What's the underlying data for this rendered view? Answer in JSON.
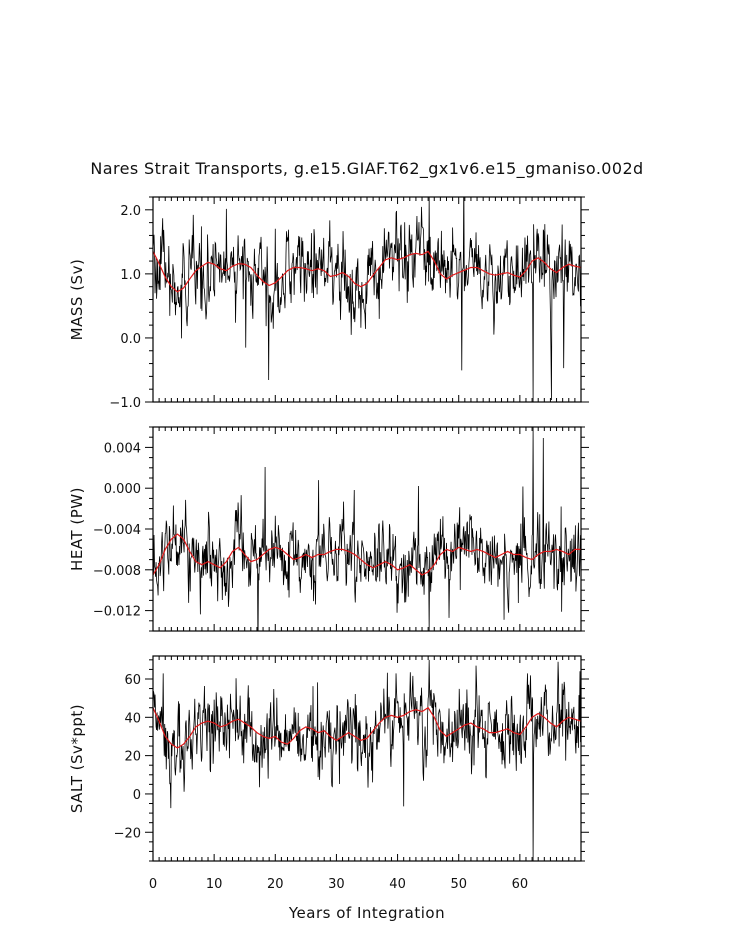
{
  "title": "Nares Strait Transports, g.e15.GIAF.T62_gx1v6.e15_gmaniso.002d",
  "chart_data": [
    {
      "type": "line",
      "ylabel": "MASS (Sv)",
      "xlabel": "",
      "xlim": [
        0,
        70
      ],
      "ylim": [
        -1.0,
        2.2
      ],
      "xticks": [
        0,
        10,
        20,
        30,
        40,
        50,
        60
      ],
      "yticks": [
        -1.0,
        0.0,
        1.0,
        2.0
      ],
      "ytick_labels": [
        "−1.0",
        "0.0",
        "1.0",
        "2.0"
      ],
      "x_minor_step": 1,
      "y_minor_step": 0.2,
      "baseline": 1.1,
      "noise": 0.28,
      "spike_scale": 0.55,
      "spikes": [
        {
          "x": 62.2,
          "y": -1.0
        },
        {
          "x": 45.2,
          "y": 2.2
        }
      ],
      "series": [
        {
          "name": "monthly",
          "color": "#000000",
          "description": "noisy monthly transport"
        },
        {
          "name": "smoothed",
          "color": "#e01818",
          "x": [
            0,
            0.8,
            2,
            3,
            4,
            5,
            6,
            7,
            8,
            9,
            10,
            11,
            12,
            13,
            14,
            15,
            16,
            17,
            18,
            19,
            20,
            21,
            22,
            23,
            24,
            25,
            26,
            27,
            28,
            29,
            30,
            31,
            32,
            33,
            34,
            35,
            36,
            37,
            38,
            39,
            40,
            41,
            42,
            43,
            44,
            45,
            46,
            47,
            48,
            49,
            50,
            51,
            52,
            53,
            54,
            55,
            56,
            57,
            58,
            59,
            60,
            61,
            62,
            63,
            64,
            65,
            66,
            67,
            68,
            69,
            70
          ],
          "values": [
            1.35,
            1.2,
            0.95,
            0.8,
            0.72,
            0.78,
            0.92,
            1.05,
            1.12,
            1.18,
            1.15,
            1.08,
            1.05,
            1.12,
            1.16,
            1.15,
            1.1,
            0.98,
            0.88,
            0.82,
            0.86,
            0.95,
            1.05,
            1.1,
            1.1,
            1.08,
            1.05,
            1.08,
            1.05,
            0.96,
            0.98,
            1.02,
            0.96,
            0.85,
            0.8,
            0.85,
            0.98,
            1.1,
            1.22,
            1.25,
            1.22,
            1.25,
            1.3,
            1.32,
            1.3,
            1.35,
            1.2,
            1.0,
            0.92,
            0.98,
            1.02,
            1.06,
            1.1,
            1.1,
            1.05,
            1.0,
            0.98,
            1.0,
            1.02,
            0.98,
            0.95,
            1.05,
            1.2,
            1.25,
            1.18,
            1.08,
            1.02,
            1.1,
            1.15,
            1.12,
            1.1
          ]
        }
      ]
    },
    {
      "type": "line",
      "ylabel": "HEAT (PW)",
      "xlabel": "",
      "xlim": [
        0,
        70
      ],
      "ylim": [
        -0.014,
        0.006
      ],
      "xticks": [
        0,
        10,
        20,
        30,
        40,
        50,
        60
      ],
      "yticks": [
        -0.012,
        -0.008,
        -0.004,
        0.0,
        0.004
      ],
      "ytick_labels": [
        "−0.012",
        "−0.008",
        "−0.004",
        "0.000",
        "0.004"
      ],
      "x_minor_step": 1,
      "y_minor_step": 0.001,
      "baseline": -0.0068,
      "noise": 0.0016,
      "spike_scale": 0.0035,
      "spikes": [
        {
          "x": 62.2,
          "y": 0.006
        },
        {
          "x": 45.2,
          "y": -0.014
        }
      ],
      "series": [
        {
          "name": "monthly",
          "color": "#000000",
          "description": "noisy monthly transport"
        },
        {
          "name": "smoothed",
          "color": "#e01818",
          "x": [
            0,
            1,
            2,
            3,
            4,
            5,
            6,
            7,
            8,
            9,
            10,
            11,
            12,
            13,
            14,
            15,
            16,
            17,
            18,
            19,
            20,
            21,
            22,
            23,
            24,
            25,
            26,
            27,
            28,
            29,
            30,
            31,
            32,
            33,
            34,
            35,
            36,
            37,
            38,
            39,
            40,
            41,
            42,
            43,
            44,
            45,
            46,
            47,
            48,
            49,
            50,
            51,
            52,
            53,
            54,
            55,
            56,
            57,
            58,
            59,
            60,
            61,
            62,
            63,
            64,
            65,
            66,
            67,
            68,
            69,
            70
          ],
          "values": [
            -0.0085,
            -0.0075,
            -0.006,
            -0.005,
            -0.0045,
            -0.005,
            -0.0062,
            -0.0072,
            -0.0075,
            -0.0072,
            -0.0075,
            -0.0078,
            -0.0072,
            -0.0062,
            -0.0058,
            -0.0065,
            -0.0072,
            -0.007,
            -0.0065,
            -0.006,
            -0.0058,
            -0.006,
            -0.0065,
            -0.007,
            -0.0068,
            -0.0065,
            -0.0068,
            -0.0065,
            -0.0065,
            -0.0062,
            -0.006,
            -0.006,
            -0.0062,
            -0.0065,
            -0.007,
            -0.0075,
            -0.0078,
            -0.0075,
            -0.0072,
            -0.0075,
            -0.008,
            -0.0078,
            -0.0075,
            -0.008,
            -0.0085,
            -0.0082,
            -0.0075,
            -0.0065,
            -0.006,
            -0.0062,
            -0.0058,
            -0.006,
            -0.0062,
            -0.006,
            -0.0062,
            -0.0065,
            -0.0068,
            -0.0065,
            -0.0062,
            -0.0065,
            -0.0065,
            -0.0068,
            -0.007,
            -0.0065,
            -0.0062,
            -0.0062,
            -0.006,
            -0.0062,
            -0.0065,
            -0.006,
            -0.006
          ]
        }
      ]
    },
    {
      "type": "line",
      "ylabel": "SALT (Sv*ppt)",
      "xlabel": "Years of Integration",
      "xlim": [
        0,
        70
      ],
      "ylim": [
        -35,
        72
      ],
      "xticks": [
        0,
        10,
        20,
        30,
        40,
        50,
        60
      ],
      "xtick_labels": [
        "0",
        "10",
        "20",
        "30",
        "40",
        "50",
        "60"
      ],
      "yticks": [
        -20,
        0,
        20,
        40,
        60
      ],
      "ytick_labels": [
        "−20",
        "0",
        "20",
        "40",
        "60"
      ],
      "x_minor_step": 1,
      "y_minor_step": 5,
      "baseline": 36,
      "noise": 9,
      "spike_scale": 18,
      "spikes": [
        {
          "x": 62.2,
          "y": -35
        },
        {
          "x": 45.2,
          "y": 70
        }
      ],
      "series": [
        {
          "name": "monthly",
          "color": "#000000",
          "description": "noisy monthly transport"
        },
        {
          "name": "smoothed",
          "color": "#e01818",
          "x": [
            0,
            1,
            2,
            3,
            4,
            5,
            6,
            7,
            8,
            9,
            10,
            11,
            12,
            13,
            14,
            15,
            16,
            17,
            18,
            19,
            20,
            21,
            22,
            23,
            24,
            25,
            26,
            27,
            28,
            29,
            30,
            31,
            32,
            33,
            34,
            35,
            36,
            37,
            38,
            39,
            40,
            41,
            42,
            43,
            44,
            45,
            46,
            47,
            48,
            49,
            50,
            51,
            52,
            53,
            54,
            55,
            56,
            57,
            58,
            59,
            60,
            61,
            62,
            63,
            64,
            65,
            66,
            67,
            68,
            69,
            70
          ],
          "values": [
            45,
            38,
            30,
            26,
            24,
            26,
            30,
            35,
            37,
            38,
            37,
            35,
            36,
            38,
            39,
            37,
            35,
            32,
            30,
            29,
            30,
            27,
            26,
            29,
            33,
            35,
            34,
            32,
            33,
            30,
            28,
            30,
            32,
            30,
            28,
            29,
            33,
            37,
            40,
            41,
            40,
            41,
            43,
            44,
            43,
            45,
            40,
            33,
            30,
            32,
            34,
            36,
            37,
            35,
            34,
            32,
            32,
            33,
            34,
            32,
            31,
            35,
            40,
            42,
            40,
            37,
            35,
            38,
            40,
            39,
            38
          ]
        }
      ]
    }
  ]
}
